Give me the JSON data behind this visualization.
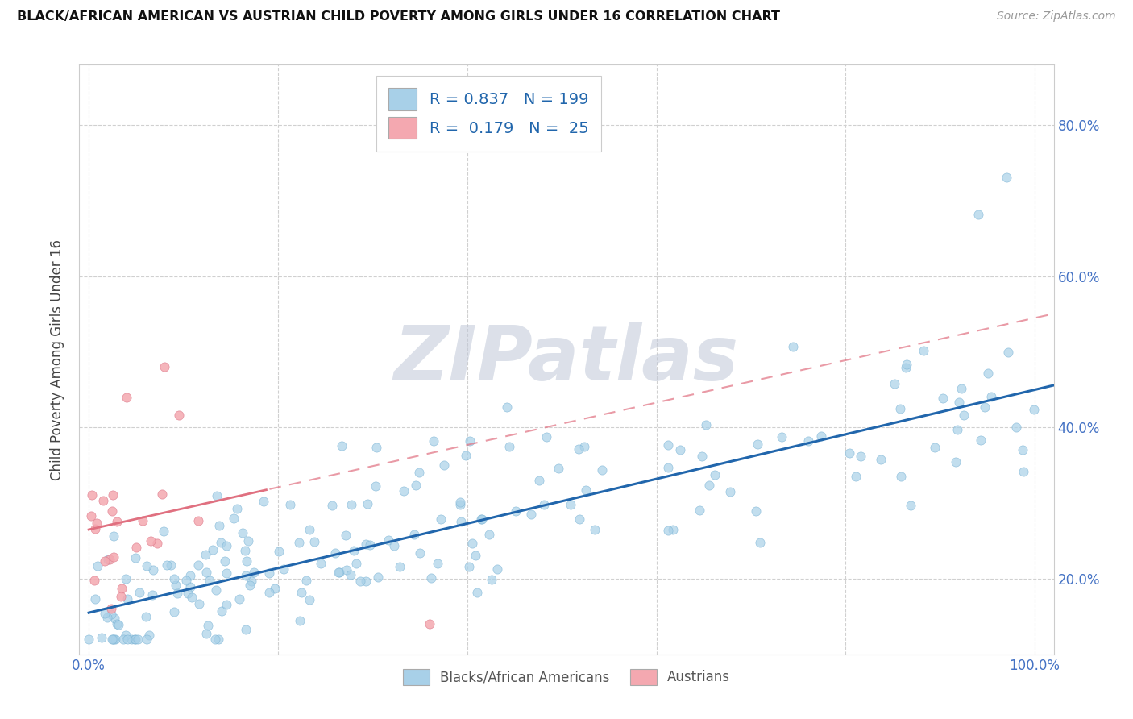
{
  "title": "BLACK/AFRICAN AMERICAN VS AUSTRIAN CHILD POVERTY AMONG GIRLS UNDER 16 CORRELATION CHART",
  "source": "Source: ZipAtlas.com",
  "ylabel": "Child Poverty Among Girls Under 16",
  "xlim": [
    -0.01,
    1.02
  ],
  "ylim": [
    0.1,
    0.88
  ],
  "xtick_vals": [
    0.0,
    0.2,
    0.4,
    0.6,
    0.8,
    1.0
  ],
  "xtick_labels": [
    "0.0%",
    "",
    "",
    "",
    "",
    "100.0%"
  ],
  "ytick_vals": [
    0.2,
    0.4,
    0.6,
    0.8
  ],
  "ytick_labels": [
    "20.0%",
    "40.0%",
    "60.0%",
    "80.0%"
  ],
  "blue_R": 0.837,
  "blue_N": 199,
  "pink_R": 0.179,
  "pink_N": 25,
  "blue_color": "#a8d0e8",
  "pink_color": "#f4a8b0",
  "blue_line_color": "#2166ac",
  "pink_line_color": "#e07080",
  "watermark": "ZIPatlas",
  "legend_label_blue": "Blacks/African Americans",
  "legend_label_pink": "Austrians",
  "background_color": "#ffffff",
  "title_color": "#111111",
  "source_color": "#999999",
  "tick_color": "#4472c4",
  "grid_color": "#d0d0d0",
  "legend_text_color": "#2166ac",
  "blue_line_intercept": 0.155,
  "blue_line_slope": 0.295,
  "pink_line_intercept": 0.265,
  "pink_line_slope": 0.28
}
